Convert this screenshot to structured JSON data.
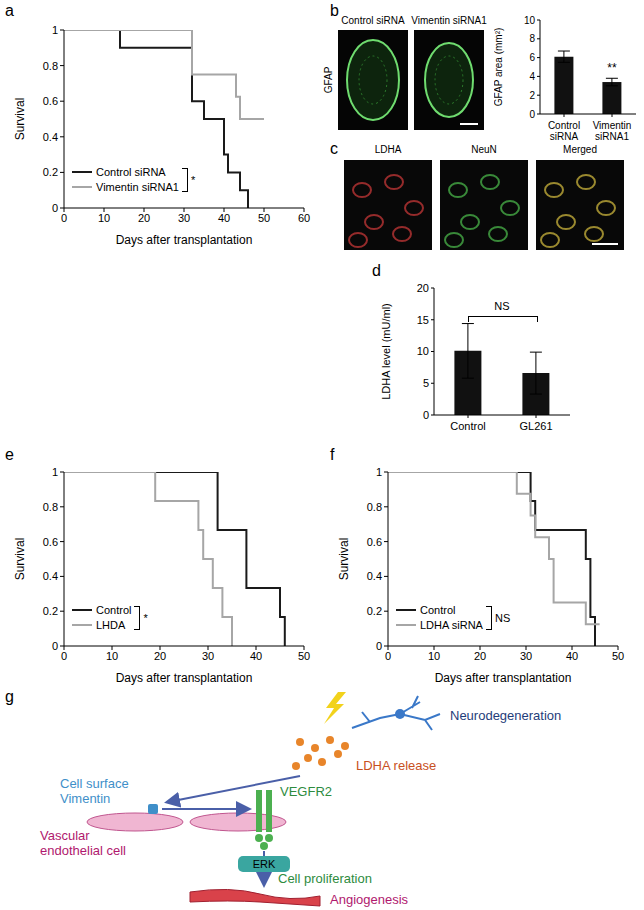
{
  "chart_data": [
    {
      "panel": "a",
      "type": "line",
      "line_style": "step",
      "x_label": "Days after transplantation",
      "y_label": "Survival",
      "xlim": [
        0,
        60
      ],
      "xticks": [
        0,
        10,
        20,
        30,
        40,
        50,
        60
      ],
      "ylim": [
        0,
        1
      ],
      "yticks": [
        0,
        0.2,
        0.4,
        0.6,
        0.8,
        1
      ],
      "legend": "lower left",
      "annotation": "*",
      "series": [
        {
          "name": "Control siRNA",
          "color": "#1a1a1a",
          "x": [
            0,
            14,
            32,
            35,
            40,
            41,
            44,
            46
          ],
          "values": [
            1,
            0.9,
            0.6,
            0.5,
            0.3,
            0.2,
            0.1,
            0
          ]
        },
        {
          "name": "Vimentin siRNA1",
          "color": "#a6a6a6",
          "x": [
            0,
            32,
            43,
            44,
            50
          ],
          "values": [
            1,
            0.75,
            0.625,
            0.5,
            0.5
          ]
        }
      ]
    },
    {
      "panel": "b",
      "type": "bar",
      "y_label": "GFAP area (mm²)",
      "categories": [
        "Control siRNA",
        "Vimentin siRNA1"
      ],
      "values": [
        6.1,
        3.4
      ],
      "errors": [
        0.6,
        0.4
      ],
      "color": "#111111",
      "ylim": [
        0,
        10
      ],
      "yticks": [
        0,
        2,
        4,
        6,
        8,
        10
      ],
      "annotation": "**",
      "annotation_category": "Vimentin siRNA1"
    },
    {
      "panel": "d",
      "type": "bar",
      "y_label": "LDHA level (mU/ml)",
      "categories": [
        "Control",
        "GL261"
      ],
      "values": [
        10.1,
        6.6
      ],
      "errors": [
        4.3,
        3.3
      ],
      "color": "#111111",
      "ylim": [
        0,
        20
      ],
      "yticks": [
        0,
        5,
        10,
        15,
        20
      ],
      "annotation": "NS"
    },
    {
      "panel": "e",
      "type": "line",
      "line_style": "step",
      "x_label": "Days after transplantation",
      "y_label": "Survival",
      "xlim": [
        0,
        50
      ],
      "xticks": [
        0,
        10,
        20,
        30,
        40,
        50
      ],
      "ylim": [
        0,
        1
      ],
      "yticks": [
        0,
        0.2,
        0.4,
        0.6,
        0.8,
        1
      ],
      "legend": "lower left",
      "annotation": "*",
      "series": [
        {
          "name": "Control",
          "color": "#1a1a1a",
          "x": [
            0,
            32,
            38,
            45,
            46
          ],
          "values": [
            1,
            0.667,
            0.333,
            0.167,
            0
          ]
        },
        {
          "name": "LHDA",
          "color": "#a6a6a6",
          "x": [
            0,
            19,
            28,
            29,
            31,
            33,
            35
          ],
          "values": [
            1,
            0.833,
            0.667,
            0.5,
            0.333,
            0.167,
            0
          ]
        }
      ]
    },
    {
      "panel": "f",
      "type": "line",
      "line_style": "step",
      "x_label": "Days after transplantation",
      "y_label": "Survival",
      "xlim": [
        0,
        50
      ],
      "xticks": [
        0,
        10,
        20,
        30,
        40,
        50
      ],
      "ylim": [
        0,
        1
      ],
      "yticks": [
        0,
        0.2,
        0.4,
        0.6,
        0.8,
        1
      ],
      "legend": "lower left",
      "annotation": "NS",
      "series": [
        {
          "name": "Control",
          "color": "#1a1a1a",
          "x": [
            0,
            31,
            32,
            43,
            44,
            45
          ],
          "values": [
            1,
            0.833,
            0.667,
            0.5,
            0.167,
            0
          ]
        },
        {
          "name": "LDHA siRNA",
          "color": "#a6a6a6",
          "x": [
            0,
            28,
            31,
            32,
            35,
            36,
            43,
            46
          ],
          "values": [
            1,
            0.875,
            0.75,
            0.625,
            0.5,
            0.25,
            0.125,
            0.125
          ]
        }
      ]
    }
  ],
  "images": [
    {
      "row_label": "GFAP",
      "titles": [
        "Control siRNA",
        "Vimentin siRNA1"
      ]
    },
    {
      "panel": "c",
      "titles": [
        "LDHA",
        "NeuN",
        "Merged"
      ]
    }
  ],
  "diagram": {
    "panel": "g",
    "labels": [
      "Neurodegeneration",
      "LDHA release",
      [
        "Cell surface",
        "Vimentin"
      ],
      "VEGFR2",
      [
        "Vascular",
        "endothelial cell"
      ],
      "ERK",
      "Cell proliferation",
      "Angiogenesis"
    ]
  }
}
